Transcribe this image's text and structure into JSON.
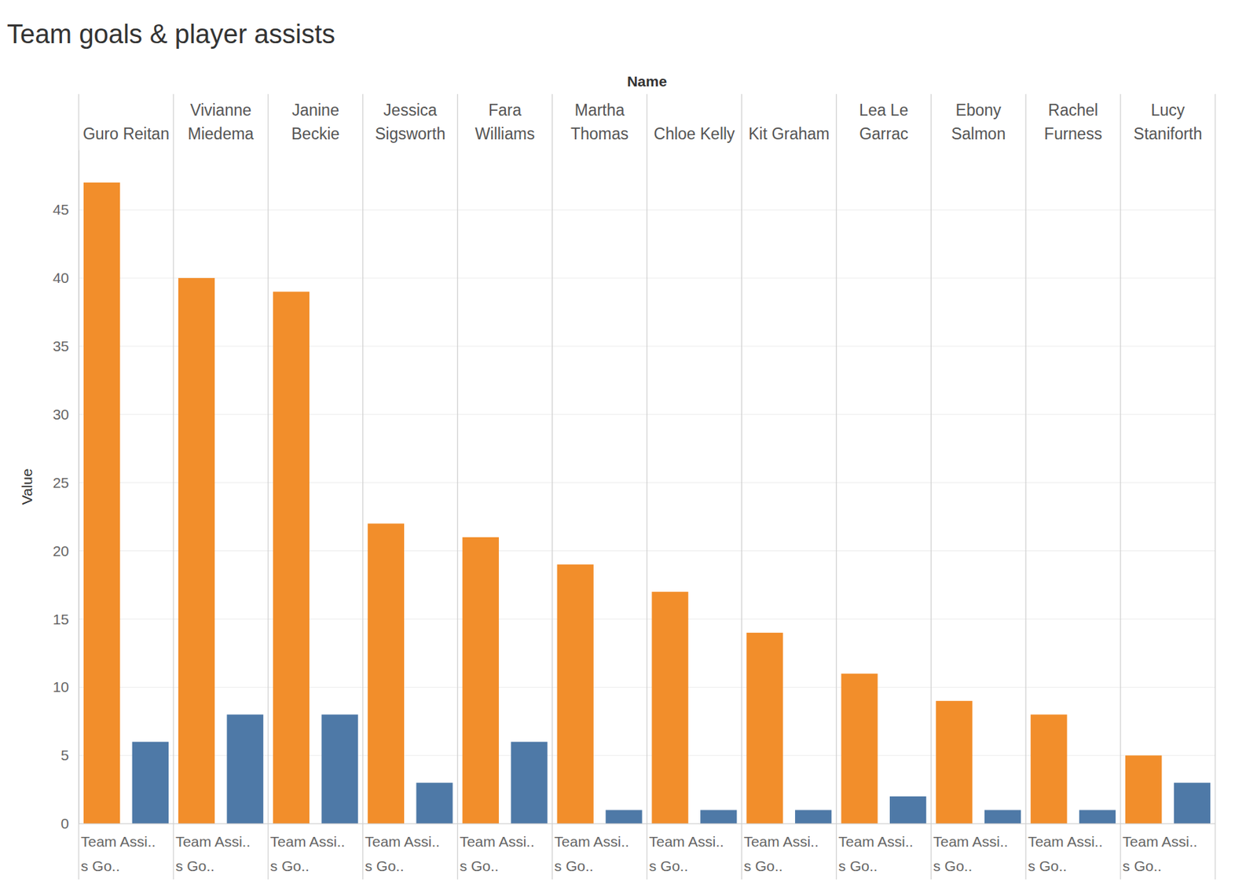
{
  "chart_data": {
    "type": "bar",
    "title": "Team goals & player assists",
    "facet_label": "Name",
    "y_label": "Value",
    "categories": [
      "Guro Reitan",
      "Vivianne Miedema",
      "Janine Beckie",
      "Jessica Sigsworth",
      "Fara Williams",
      "Martha Thomas",
      "Chloe Kelly",
      "Kit Graham",
      "Lea Le Garrac",
      "Ebony Salmon",
      "Rachel Furness",
      "Lucy Staniforth"
    ],
    "x_tick_label_lines": [
      "Team Assi..",
      "s Go.."
    ],
    "series": [
      {
        "color": "#f28e2b",
        "values": [
          47,
          40,
          39,
          22,
          21,
          19,
          17,
          14,
          11,
          9,
          8,
          5
        ]
      },
      {
        "color": "#4e79a7",
        "values": [
          6,
          8,
          8,
          3,
          6,
          1,
          1,
          1,
          2,
          1,
          1,
          3
        ]
      }
    ],
    "ylim": [
      0,
      49.4
    ],
    "yticks": [
      0,
      5,
      10,
      15,
      20,
      25,
      30,
      35,
      40,
      45
    ],
    "grid": true
  }
}
